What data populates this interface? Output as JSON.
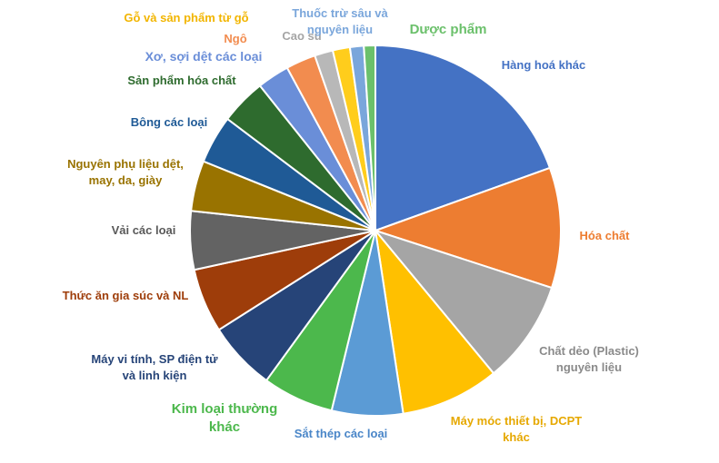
{
  "chart_data": {
    "type": "pie",
    "title": "",
    "slices": [
      {
        "label": "Hàng hoá khác",
        "value": 19.5,
        "color": "#4472C4"
      },
      {
        "label": "Hóa chất",
        "value": 10.5,
        "color": "#ED7D31"
      },
      {
        "label": "Chất dẻo (Plastic) nguyên liệu",
        "value": 9.0,
        "color": "#A5A5A5"
      },
      {
        "label": "Máy móc thiết bị, DCPT khác",
        "value": 8.6,
        "color": "#FFC000"
      },
      {
        "label": "Sắt thép các loại",
        "value": 6.2,
        "color": "#5B9BD5"
      },
      {
        "label": "Kim loại thường khác",
        "value": 6.2,
        "color": "#4CB84C"
      },
      {
        "label": "Máy vi tính, SP điện tử và linh kiện",
        "value": 6.0,
        "color": "#264478"
      },
      {
        "label": "Thức ăn gia súc và NL",
        "value": 5.6,
        "color": "#9E3D0A"
      },
      {
        "label": "Vải các loại",
        "value": 5.1,
        "color": "#636363"
      },
      {
        "label": "Nguyên phụ liệu dệt, may, da, giày",
        "value": 4.4,
        "color": "#997300"
      },
      {
        "label": "Bông các loại",
        "value": 4.2,
        "color": "#1F5A96"
      },
      {
        "label": "Sản phẩm hóa chất",
        "value": 4.0,
        "color": "#2E6B2E"
      },
      {
        "label": "Xơ, sợi dệt các loại",
        "value": 2.8,
        "color": "#6A8ED8"
      },
      {
        "label": "Ngô",
        "value": 2.6,
        "color": "#F28C4F"
      },
      {
        "label": "Cao su",
        "value": 1.6,
        "color": "#B8B8B8"
      },
      {
        "label": "Gỗ và sản phẩm từ gỗ",
        "value": 1.5,
        "color": "#FFCD1C"
      },
      {
        "label": "Thuốc trừ sâu và nguyên liệu",
        "value": 1.2,
        "color": "#7AA6DB"
      },
      {
        "label": "Dược phẩm",
        "value": 1.0,
        "color": "#6BC06B"
      }
    ]
  }
}
